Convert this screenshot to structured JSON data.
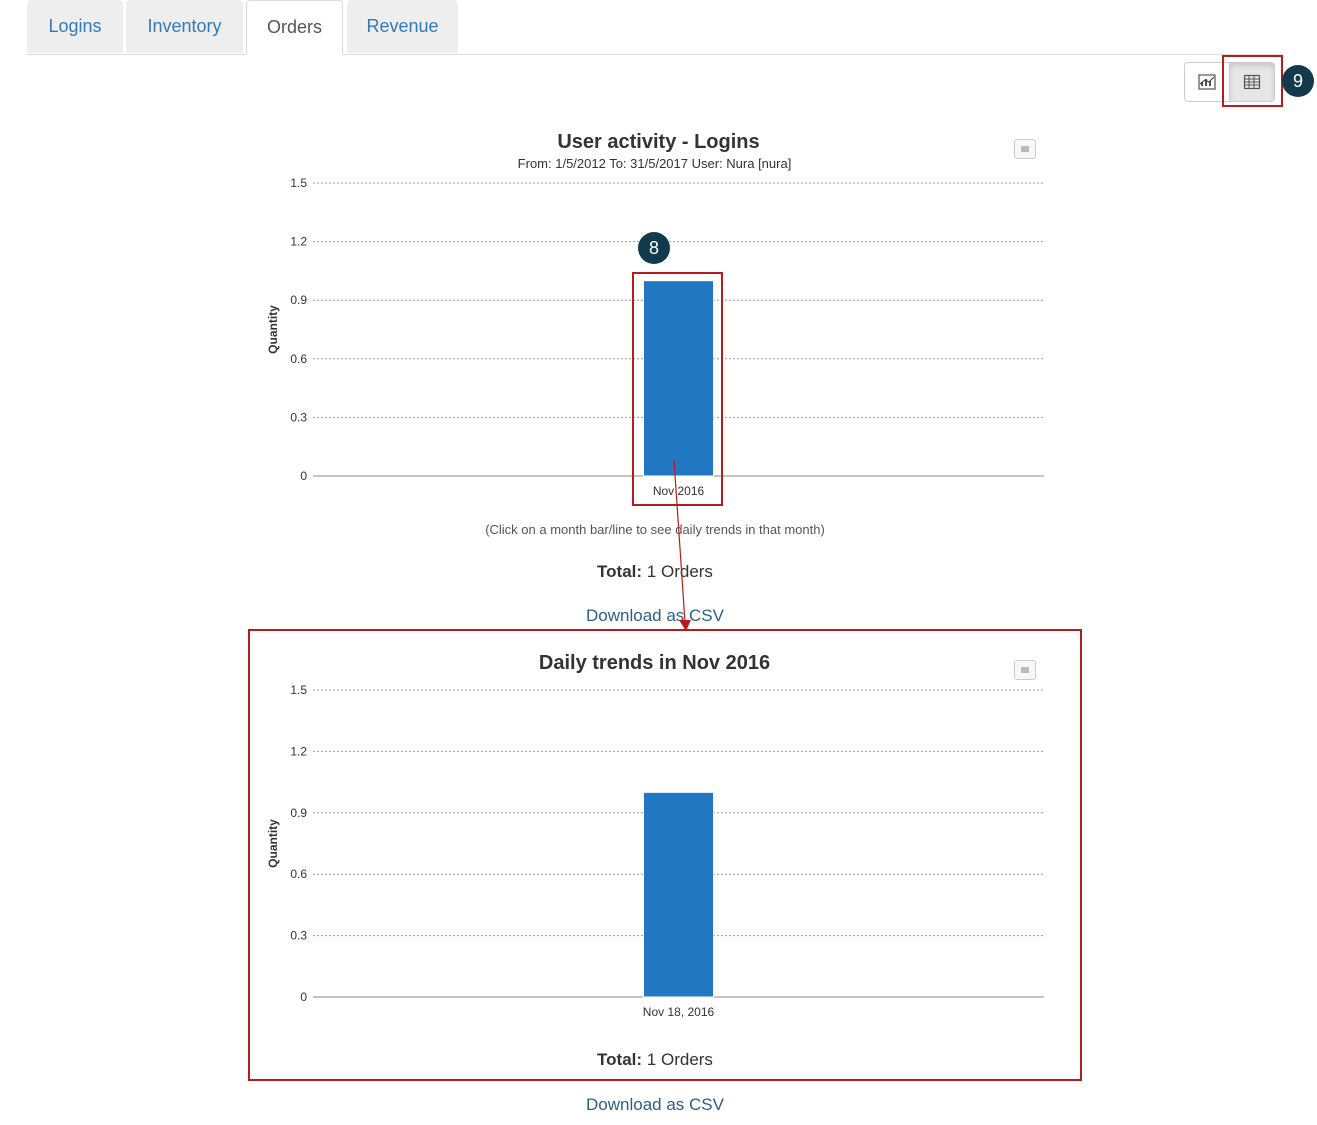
{
  "tabs": [
    {
      "label": "Logins"
    },
    {
      "label": "Inventory"
    },
    {
      "label": "Orders"
    },
    {
      "label": "Revenue"
    }
  ],
  "active_tab": "Orders",
  "view_toggle": {
    "chart_icon": "chart-icon",
    "table_icon": "table-icon",
    "selected": "table"
  },
  "callouts": {
    "bar": "8",
    "table_toggle": "9"
  },
  "colors": {
    "bar": "#2277c2",
    "highlight": "#b71c1c",
    "callout": "#123a4d",
    "link": "#2a5e8c"
  },
  "monthly": {
    "note": "(Click on a month bar/line to see daily trends in that month)",
    "total_label": "Total:",
    "total_value": "1 Orders",
    "download": "Download as CSV"
  },
  "daily": {
    "total_label": "Total:",
    "total_value": "1 Orders",
    "download": "Download as CSV"
  },
  "chart_data": [
    {
      "type": "bar",
      "title": "User activity - Logins",
      "subtitle": "From: 1/5/2012 To: 31/5/2017 User: Nura [nura]",
      "categories": [
        "Nov 2016"
      ],
      "values": [
        1
      ],
      "xlabel": "",
      "ylabel": "Quantity",
      "ylim": [
        0,
        1.5
      ],
      "yticks": [
        "0",
        "0.3",
        "0.6",
        "0.9",
        "1.2",
        "1.5"
      ],
      "grid": true
    },
    {
      "type": "bar",
      "title": "Daily trends in Nov 2016",
      "categories": [
        "Nov 18, 2016"
      ],
      "values": [
        1
      ],
      "xlabel": "",
      "ylabel": "Quantity",
      "ylim": [
        0,
        1.5
      ],
      "yticks": [
        "0",
        "0.3",
        "0.6",
        "0.9",
        "1.2",
        "1.5"
      ],
      "grid": true
    }
  ]
}
